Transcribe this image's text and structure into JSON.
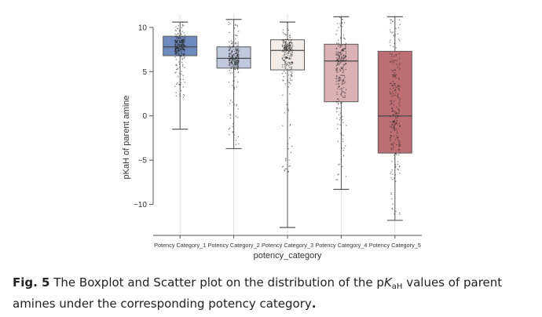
{
  "chart_data": {
    "type": "box",
    "xlabel": "potency_category",
    "ylabel": "pKaH of parent amine",
    "ylim": [
      -13.5,
      11.5
    ],
    "yticks": [
      10,
      5,
      0,
      -5,
      -10
    ],
    "grid": "vertical",
    "categories": [
      "Potency Category_1",
      "Potency Category_2",
      "Potency Category_3",
      "Potency Category_4",
      "Potency Category_5"
    ],
    "series": [
      {
        "q1": 6.8,
        "median": 7.8,
        "q3": 9.0,
        "whisker_low": -1.5,
        "whisker_high": 10.6,
        "color": "#6e8bbf",
        "points_min": 2.0,
        "points_max": 10.6
      },
      {
        "q1": 5.4,
        "median": 6.5,
        "q3": 7.8,
        "whisker_low": -3.7,
        "whisker_high": 10.9,
        "color": "#c0c9dd",
        "points_min": -3.7,
        "points_max": 10.9
      },
      {
        "q1": 5.2,
        "median": 7.4,
        "q3": 8.6,
        "whisker_low": -12.6,
        "whisker_high": 10.6,
        "color": "#f2ede9",
        "points_min": -6.5,
        "points_max": 10.6
      },
      {
        "q1": 1.6,
        "median": 6.2,
        "q3": 8.1,
        "whisker_low": -8.3,
        "whisker_high": 11.2,
        "color": "#dcb1b3",
        "points_min": -7.5,
        "points_max": 11.2
      },
      {
        "q1": -4.2,
        "median": 0.0,
        "q3": 7.3,
        "whisker_low": -11.8,
        "whisker_high": 11.2,
        "color": "#bd6e74",
        "points_min": -11.8,
        "points_max": 11.2
      }
    ]
  },
  "caption": {
    "fig_label": "Fig. 5",
    "text_1": " The Boxplot and Scatter plot on the distribution of the p",
    "k": "K",
    "sub": "aH",
    "text_2": " values of parent amines under the corresponding potency category",
    "period": "."
  }
}
